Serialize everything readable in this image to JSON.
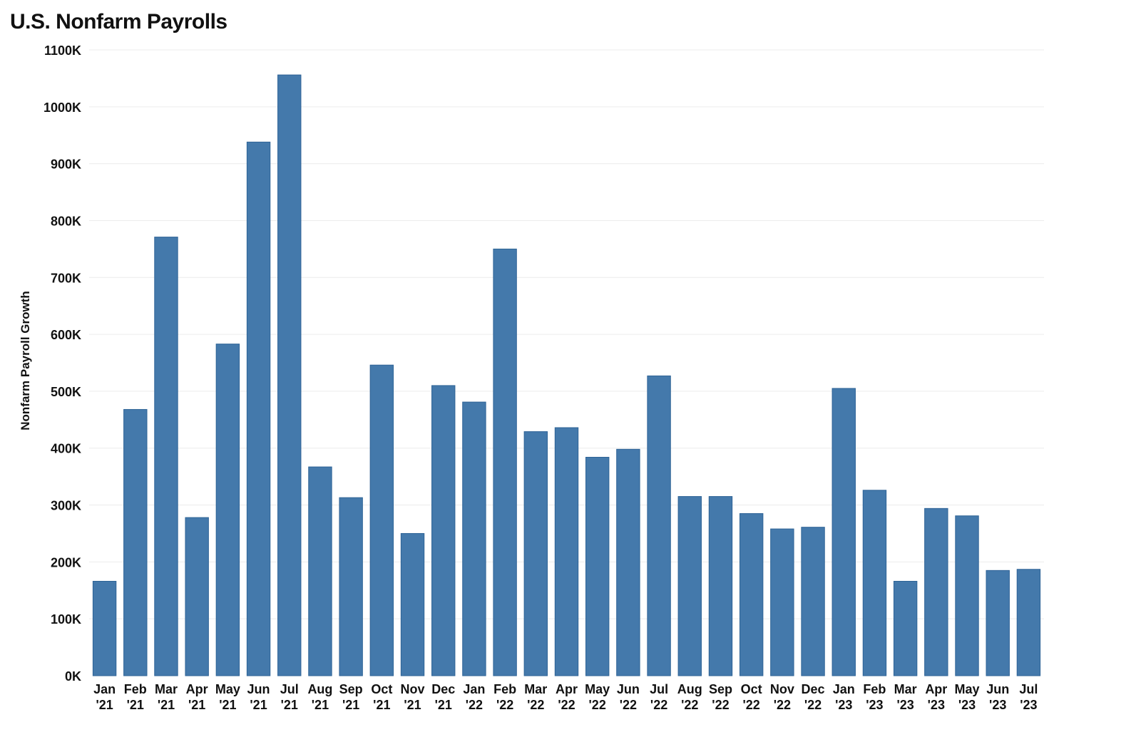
{
  "chart_data": {
    "type": "bar",
    "title": "U.S. Nonfarm Payrolls",
    "xlabel": "",
    "ylabel": "Nonfarm Payroll Growth",
    "ylim": [
      0,
      1100000
    ],
    "yticks": [
      0,
      100000,
      200000,
      300000,
      400000,
      500000,
      600000,
      700000,
      800000,
      900000,
      1000000,
      1100000
    ],
    "ytick_labels": [
      "0K",
      "100K",
      "200K",
      "300K",
      "400K",
      "500K",
      "600K",
      "700K",
      "800K",
      "900K",
      "1000K",
      "1100K"
    ],
    "grid": true,
    "bar_color": "#4479ab",
    "bar_edge_color": "#2e6396",
    "categories": [
      [
        "Jan",
        "'21"
      ],
      [
        "Feb",
        "'21"
      ],
      [
        "Mar",
        "'21"
      ],
      [
        "Apr",
        "'21"
      ],
      [
        "May",
        "'21"
      ],
      [
        "Jun",
        "'21"
      ],
      [
        "Jul",
        "'21"
      ],
      [
        "Aug",
        "'21"
      ],
      [
        "Sep",
        "'21"
      ],
      [
        "Oct",
        "'21"
      ],
      [
        "Nov",
        "'21"
      ],
      [
        "Dec",
        "'21"
      ],
      [
        "Jan",
        "'22"
      ],
      [
        "Feb",
        "'22"
      ],
      [
        "Mar",
        "'22"
      ],
      [
        "Apr",
        "'22"
      ],
      [
        "May",
        "'22"
      ],
      [
        "Jun",
        "'22"
      ],
      [
        "Jul",
        "'22"
      ],
      [
        "Aug",
        "'22"
      ],
      [
        "Sep",
        "'22"
      ],
      [
        "Oct",
        "'22"
      ],
      [
        "Nov",
        "'22"
      ],
      [
        "Dec",
        "'22"
      ],
      [
        "Jan",
        "'23"
      ],
      [
        "Feb",
        "'23"
      ],
      [
        "Mar",
        "'23"
      ],
      [
        "Apr",
        "'23"
      ],
      [
        "May",
        "'23"
      ],
      [
        "Jun",
        "'23"
      ],
      [
        "Jul",
        "'23"
      ]
    ],
    "values": [
      166000,
      468000,
      771000,
      278000,
      583000,
      938000,
      1056000,
      367000,
      313000,
      546000,
      250000,
      510000,
      481000,
      750000,
      429000,
      436000,
      384000,
      398000,
      527000,
      315000,
      315000,
      285000,
      258000,
      261000,
      505000,
      326000,
      166000,
      294000,
      281000,
      185000,
      187000
    ]
  }
}
